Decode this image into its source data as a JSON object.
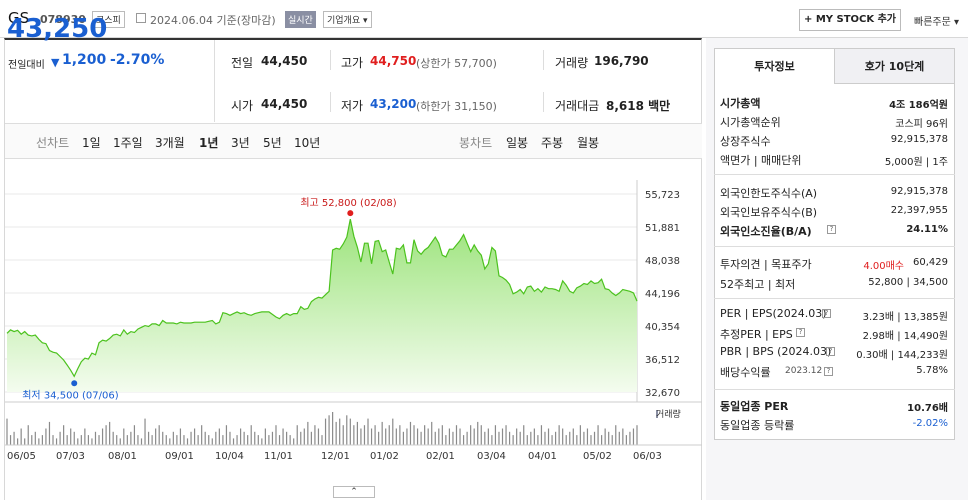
{
  "header": {
    "stock_name": "GS",
    "stock_code": "078930",
    "market": "코스피",
    "basis_date": "2024.06.04 기준(장마감)",
    "realtime": "실시간",
    "company_overview": "기업개요 ▾",
    "mystock_button": "+ MY STOCK 추가",
    "quick_order": "빠른주문 ▾"
  },
  "price": {
    "current": "43,250",
    "change_label": "전일대비",
    "change_arrow": "▼",
    "change_value": "1,200",
    "change_rate": "-2.70%"
  },
  "summary": {
    "prev_close_label": "전일",
    "prev_close": "44,450",
    "open_label": "시가",
    "open": "44,450",
    "high_label": "고가",
    "high": "44,750",
    "upper_limit": "(상한가 57,700)",
    "low_label": "저가",
    "low": "43,200",
    "lower_limit": "(하한가 31,150)",
    "volume_label": "거래량",
    "volume": "196,790",
    "amount_label": "거래대금",
    "amount": "8,618 백만"
  },
  "periods": {
    "line_chart_label": "선차트",
    "line_periods": [
      "1일",
      "1주일",
      "3개월",
      "1년",
      "3년",
      "5년",
      "10년"
    ],
    "selected": "1년",
    "candle_chart_label": "봉차트",
    "candle_periods": [
      "일봉",
      "주봉",
      "월봉"
    ]
  },
  "chart_data": {
    "type": "area",
    "title": "",
    "y_ticks": [
      "55,723",
      "51,881",
      "48,038",
      "44,196",
      "40,354",
      "36,512",
      "32,670"
    ],
    "ylim": [
      32670,
      55723
    ],
    "x_ticks": [
      "06/05",
      "07/03",
      "08/01",
      "09/01",
      "10/04",
      "11/01",
      "12/01",
      "01/02",
      "02/01",
      "03/04",
      "04/01",
      "05/02",
      "06/03"
    ],
    "high_annotation": "최고 52,800 (02/08)",
    "low_annotation": "최저 34,500 (07/06)",
    "volume_legend": "거래량",
    "series": [
      {
        "values": [
          39500,
          39900,
          39700,
          39850,
          39400,
          39700,
          39300,
          39200,
          39300,
          38800,
          38400,
          38300,
          37500,
          37300,
          37200,
          36800,
          36400,
          35800,
          35200,
          34500,
          35400,
          36200,
          36600,
          36500,
          37200,
          37000,
          38400,
          38700,
          38600,
          38900,
          39300,
          39400,
          39200,
          39900,
          39400,
          39700,
          39600,
          40000,
          40200,
          40400,
          40300,
          40600,
          40600,
          40400,
          41000,
          40700,
          40700,
          40700,
          40600,
          40800,
          40700,
          40700,
          40700,
          40800,
          40800,
          40800,
          40800,
          40900,
          41000,
          40600,
          40800,
          41900,
          41800,
          41600,
          41800,
          42000,
          41800,
          41900,
          41700,
          41600,
          41800,
          41900,
          42000,
          42000,
          42000,
          41700,
          41400,
          41200,
          41600,
          41800,
          41600,
          41800,
          41800,
          42600,
          42300,
          42400,
          43200,
          43500,
          43700,
          43600,
          44000,
          44400,
          49200,
          49400,
          49300,
          49900,
          50700,
          52800,
          50800,
          49500,
          47800,
          50000,
          50000,
          47600,
          50200,
          50300,
          49000,
          49200,
          47800,
          46400,
          49400,
          49300,
          49800,
          47700,
          47700,
          50400,
          49100,
          48700,
          49200,
          49500,
          50100,
          50700,
          50000,
          48600,
          48400,
          49300,
          49300,
          49800,
          50300,
          51000,
          50000,
          49000,
          49800,
          49100,
          48600,
          47000,
          47600,
          49500,
          49100,
          46200,
          46000,
          45700,
          45200,
          44100,
          44300,
          44600,
          44100,
          44900,
          45000,
          44400,
          44700,
          44300,
          44900,
          44700,
          44700,
          44600,
          44400,
          45600,
          45100,
          44400,
          44200,
          44800,
          45000,
          45300,
          45200,
          45600,
          45300,
          45400,
          45800,
          44700,
          44600,
          44200,
          43900,
          44200,
          44600,
          44500,
          44400,
          44200,
          43250
        ],
        "volumes": [
          0.8,
          0.3,
          0.4,
          0.2,
          0.5,
          0.2,
          0.6,
          0.3,
          0.4,
          0.2,
          0.3,
          0.5,
          0.7,
          0.3,
          0.2,
          0.4,
          0.6,
          0.3,
          0.5,
          0.4,
          0.2,
          0.3,
          0.5,
          0.3,
          0.2,
          0.4,
          0.3,
          0.5,
          0.6,
          0.7,
          0.4,
          0.3,
          0.2,
          0.5,
          0.3,
          0.4,
          0.6,
          0.3,
          0.2,
          0.8,
          0.4,
          0.3,
          0.5,
          0.6,
          0.4,
          0.3,
          0.2,
          0.4,
          0.3,
          0.5,
          0.3,
          0.2,
          0.4,
          0.5,
          0.3,
          0.6,
          0.4,
          0.3,
          0.2,
          0.4,
          0.5,
          0.3,
          0.6,
          0.4,
          0.2,
          0.3,
          0.5,
          0.4,
          0.3,
          0.6,
          0.4,
          0.3,
          0.2,
          0.5,
          0.3,
          0.4,
          0.6,
          0.3,
          0.5,
          0.4,
          0.3,
          0.2,
          0.6,
          0.4,
          0.5,
          0.7,
          0.4,
          0.6,
          0.5,
          0.3,
          0.8,
          0.9,
          1.0,
          0.7,
          0.8,
          0.6,
          0.9,
          0.8,
          0.6,
          0.7,
          0.5,
          0.6,
          0.8,
          0.5,
          0.6,
          0.4,
          0.7,
          0.5,
          0.6,
          0.8,
          0.5,
          0.6,
          0.4,
          0.5,
          0.7,
          0.6,
          0.5,
          0.4,
          0.6,
          0.5,
          0.7,
          0.4,
          0.5,
          0.6,
          0.3,
          0.5,
          0.4,
          0.6,
          0.5,
          0.3,
          0.4,
          0.6,
          0.5,
          0.7,
          0.6,
          0.4,
          0.5,
          0.3,
          0.6,
          0.4,
          0.5,
          0.6,
          0.4,
          0.3,
          0.5,
          0.4,
          0.6,
          0.3,
          0.4,
          0.5,
          0.3,
          0.6,
          0.4,
          0.5,
          0.3,
          0.4,
          0.6,
          0.5,
          0.3,
          0.4,
          0.5,
          0.3,
          0.6,
          0.4,
          0.5,
          0.3,
          0.4,
          0.6,
          0.3,
          0.5,
          0.4,
          0.3,
          0.6,
          0.4,
          0.5,
          0.3,
          0.4,
          0.5,
          0.6
        ]
      }
    ]
  },
  "collapse_button": "⌃",
  "right_panel": {
    "tab_active": "투자정보",
    "tab_inactive": "호가 10단계",
    "market_cap_label": "시가총액",
    "market_cap": "4조 186억원",
    "market_cap_rank_label": "시가총액순위",
    "market_cap_rank": "코스피 96위",
    "shares_label": "상장주식수",
    "shares": "92,915,378",
    "par_label": "액면가 | 매매단위",
    "par": "5,000원 | 1주",
    "foreign_limit_label": "외국인한도주식수(A)",
    "foreign_limit": "92,915,378",
    "foreign_hold_label": "외국인보유주식수(B)",
    "foreign_hold": "22,397,955",
    "foreign_rate_label": "외국인소진율(B/A)",
    "foreign_rate": "24.11%",
    "opinion_label": "투자의견 | 목표주가",
    "opinion": "4.00매수",
    "target": "60,429",
    "w52_label": "52주최고 | 최저",
    "w52": "52,800 | 34,500",
    "per_label": "PER | EPS(2024.03)",
    "per": "3.23배 | 13,385원",
    "est_per_label": "추정PER | EPS",
    "est_per": "2.98배 | 14,490원",
    "pbr_label": "PBR | BPS (2024.03)",
    "pbr": "0.30배 | 144,233원",
    "dividend_label": "배당수익률",
    "dividend_date": "2023.12",
    "dividend": "5.78%",
    "sector_per_label": "동일업종 PER",
    "sector_per": "10.76배",
    "sector_change_label": "동일업종 등락률",
    "sector_change": "-2.02%"
  }
}
